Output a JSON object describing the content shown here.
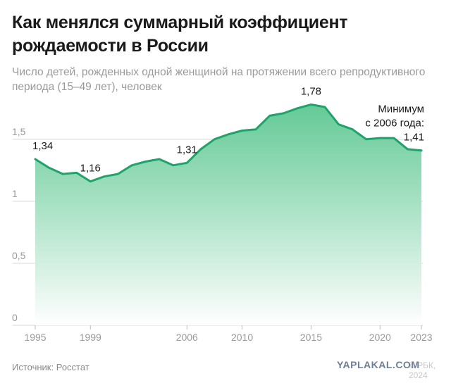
{
  "header": {
    "title": "Как менялся суммарный коэффициент рождаемости в России",
    "subtitle": "Число детей, рожденных одной женщиной на протяжении всего репродуктивного периода (15–49 лет), человек"
  },
  "footer": {
    "source": "Источник: Росстат",
    "watermark": "YAPLAKAL.COM",
    "watermark_faded": "© РБК, 2024"
  },
  "colors": {
    "line": "#1fa36a",
    "fill_top": "#5cc791",
    "fill_bottom": "#ffffff",
    "grid": "#d9d9d9",
    "axis_text": "#9a9a9a",
    "label_text": "#1a1a1a"
  },
  "chart_data": {
    "type": "area",
    "title": "Как менялся суммарный коэффициент рождаемости в России",
    "xlabel": "",
    "ylabel": "",
    "xlim": [
      1995,
      2023
    ],
    "ylim": [
      0,
      1.8
    ],
    "yticks": [
      {
        "value": 0,
        "label": "0"
      },
      {
        "value": 0.5,
        "label": "0,5"
      },
      {
        "value": 1,
        "label": "1"
      },
      {
        "value": 1.5,
        "label": "1,5"
      }
    ],
    "xticks": [
      1995,
      1999,
      2006,
      2010,
      2015,
      2020,
      2023
    ],
    "grid": true,
    "series": [
      {
        "x": [
          1995,
          1996,
          1997,
          1998,
          1999,
          2000,
          2001,
          2002,
          2003,
          2004,
          2005,
          2006,
          2007,
          2008,
          2009,
          2010,
          2011,
          2012,
          2013,
          2014,
          2015,
          2016,
          2017,
          2018,
          2019,
          2020,
          2021,
          2022,
          2023
        ],
        "values": [
          1.34,
          1.27,
          1.22,
          1.23,
          1.16,
          1.2,
          1.22,
          1.29,
          1.32,
          1.34,
          1.29,
          1.31,
          1.42,
          1.5,
          1.54,
          1.57,
          1.58,
          1.69,
          1.71,
          1.75,
          1.78,
          1.76,
          1.62,
          1.58,
          1.5,
          1.51,
          1.51,
          1.42,
          1.41
        ]
      }
    ],
    "data_labels": [
      {
        "x": 1995,
        "value": "1,34"
      },
      {
        "x": 1999,
        "value": "1,16"
      },
      {
        "x": 2006,
        "value": "1,31"
      },
      {
        "x": 2015,
        "value": "1,78"
      },
      {
        "x": 2023,
        "value": "1,41"
      }
    ],
    "annotation": {
      "line1": "Минимум",
      "line2": "с 2006 года:"
    }
  }
}
